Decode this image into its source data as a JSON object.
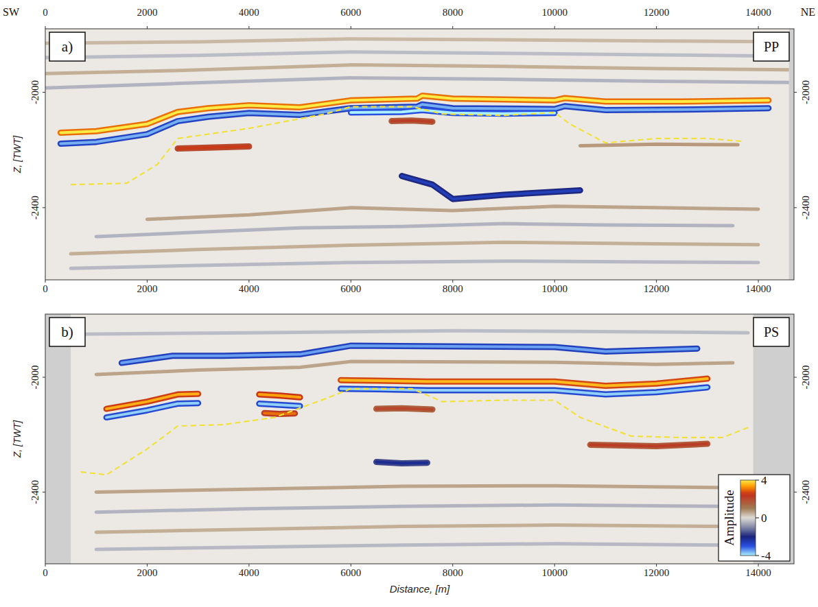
{
  "chart_data": [
    {
      "type": "seismic_section",
      "title": "a)",
      "subtitle": "PP",
      "annotations": [
        "SW",
        "NE"
      ],
      "ylabel": "Z, [TWT]",
      "xlim": [
        0,
        14700
      ],
      "ylim": [
        -2650,
        -1780
      ],
      "xticks": [
        0,
        2000,
        4000,
        6000,
        8000,
        10000,
        12000,
        14000
      ],
      "x2ticks": [
        0,
        2000,
        4000,
        6000,
        8000,
        10000,
        12000,
        14000
      ],
      "yticks": [
        -2400,
        -2000
      ],
      "y2lim": [
        -2650,
        -1780
      ],
      "y2ticks": [
        -2400,
        -2000
      ],
      "coverage": [
        0,
        14600
      ],
      "horizon": {
        "color": "#f0e23a",
        "line_style": "dashed",
        "x": [
          500,
          1600,
          2200,
          2600,
          4000,
          5500,
          6000,
          7200,
          7800,
          9000,
          10000,
          10300,
          11000,
          12000,
          13000,
          13700
        ],
        "z": [
          -2320,
          -2315,
          -2250,
          -2160,
          -2125,
          -2075,
          -2050,
          -2050,
          -2075,
          -2080,
          -2070,
          -2110,
          -2175,
          -2160,
          -2160,
          -2170
        ]
      },
      "reflectors": [
        {
          "amplitude": 0.8,
          "x": [
            0,
            3000,
            6000,
            9000,
            12000,
            14600
          ],
          "z": [
            -1830,
            -1825,
            -1815,
            -1818,
            -1822,
            -1825
          ]
        },
        {
          "amplitude": -0.8,
          "x": [
            0,
            3000,
            6000,
            9000,
            12000,
            14600
          ],
          "z": [
            -1880,
            -1872,
            -1860,
            -1865,
            -1870,
            -1875
          ]
        },
        {
          "amplitude": 1.0,
          "x": [
            0,
            2500,
            6000,
            9000,
            12000,
            14600
          ],
          "z": [
            -1935,
            -1925,
            -1905,
            -1910,
            -1918,
            -1922
          ]
        },
        {
          "amplitude": -1.0,
          "x": [
            0,
            2500,
            6000,
            9000,
            12000,
            14600
          ],
          "z": [
            -1985,
            -1970,
            -1950,
            -1955,
            -1962,
            -1966
          ]
        },
        {
          "amplitude": 4,
          "x": [
            300,
            1000,
            2000,
            2600,
            3200,
            4000,
            5000,
            6000,
            7300,
            7400,
            8000,
            10000,
            10200,
            11000,
            12500,
            14200
          ],
          "z": [
            -2140,
            -2135,
            -2110,
            -2068,
            -2055,
            -2045,
            -2052,
            -2028,
            -2022,
            -2012,
            -2022,
            -2028,
            -2020,
            -2032,
            -2032,
            -2028
          ]
        },
        {
          "amplitude": -3.6,
          "x": [
            300,
            1000,
            2000,
            2600,
            3200,
            4000,
            5000,
            6000,
            7300,
            7400,
            8000,
            10000,
            10200,
            11000,
            12500,
            14200
          ],
          "z": [
            -2178,
            -2172,
            -2145,
            -2100,
            -2085,
            -2072,
            -2078,
            -2055,
            -2050,
            -2042,
            -2055,
            -2058,
            -2048,
            -2062,
            -2060,
            -2055
          ]
        },
        {
          "amplitude": -4,
          "x": [
            6000,
            7000,
            7400,
            8000,
            9000,
            10000
          ],
          "z": [
            -2070,
            -2068,
            -2062,
            -2072,
            -2074,
            -2072
          ]
        },
        {
          "amplitude": 2.6,
          "x": [
            2600,
            3200,
            4000
          ],
          "z": [
            -2195,
            -2192,
            -2188
          ]
        },
        {
          "amplitude": 2.2,
          "x": [
            6800,
            7200,
            7600
          ],
          "z": [
            -2100,
            -2098,
            -2102
          ]
        },
        {
          "amplitude": 1.5,
          "x": [
            10500,
            12000,
            13600
          ],
          "z": [
            -2185,
            -2180,
            -2182
          ]
        },
        {
          "amplitude": -2.6,
          "x": [
            7000,
            7600,
            8000,
            9000,
            10500
          ],
          "z": [
            -2290,
            -2320,
            -2370,
            -2355,
            -2340
          ]
        },
        {
          "amplitude": 1.2,
          "x": [
            2000,
            4000,
            6000,
            8000,
            10000,
            12000,
            14000
          ],
          "z": [
            -2440,
            -2425,
            -2400,
            -2410,
            -2395,
            -2400,
            -2405
          ]
        },
        {
          "amplitude": -1.0,
          "x": [
            1000,
            3000,
            5000,
            7000,
            9000,
            11000,
            13500
          ],
          "z": [
            -2500,
            -2485,
            -2470,
            -2465,
            -2455,
            -2460,
            -2462
          ]
        },
        {
          "amplitude": 1.0,
          "x": [
            500,
            3000,
            6000,
            9000,
            12000,
            14000
          ],
          "z": [
            -2560,
            -2545,
            -2530,
            -2520,
            -2525,
            -2528
          ]
        },
        {
          "amplitude": -0.9,
          "x": [
            500,
            3000,
            6000,
            9000,
            12000,
            14000
          ],
          "z": [
            -2610,
            -2600,
            -2590,
            -2585,
            -2588,
            -2590
          ]
        }
      ]
    },
    {
      "type": "seismic_section",
      "title": "b)",
      "subtitle": "PS",
      "xlabel": "Distance, [m]",
      "ylabel": "Z, [TWT]",
      "xlim": [
        0,
        14700
      ],
      "ylim": [
        -2650,
        -1780
      ],
      "xticks": [
        0,
        2000,
        4000,
        6000,
        8000,
        10000,
        12000,
        14000
      ],
      "yticks": [
        -2400,
        -2000
      ],
      "y2lim": [
        -2650,
        -1780
      ],
      "y2ticks": [
        -2400,
        -2000
      ],
      "coverage": [
        500,
        13900
      ],
      "colorbar": {
        "label": "Amplitude",
        "range": [
          -4,
          4
        ],
        "ticks": [
          -4,
          0,
          4
        ]
      },
      "horizon": {
        "color": "#f0e23a",
        "line_style": "dashed",
        "x": [
          700,
          1200,
          2000,
          2600,
          3500,
          4500,
          5500,
          6000,
          7200,
          7800,
          9000,
          10000,
          10500,
          11500,
          12500,
          13300,
          13800
        ],
        "z": [
          -2330,
          -2340,
          -2250,
          -2170,
          -2165,
          -2140,
          -2075,
          -2040,
          -2040,
          -2085,
          -2080,
          -2080,
          -2140,
          -2205,
          -2210,
          -2210,
          -2175
        ]
      },
      "reflectors": [
        {
          "amplitude": -0.8,
          "x": [
            600,
            4000,
            8000,
            12000,
            13800
          ],
          "z": [
            -1850,
            -1845,
            -1838,
            -1842,
            -1845
          ]
        },
        {
          "amplitude": -3.5,
          "x": [
            1500,
            2500,
            3500,
            5000,
            6000,
            10000,
            11000,
            12800
          ],
          "z": [
            -1950,
            -1925,
            -1925,
            -1920,
            -1890,
            -1895,
            -1910,
            -1900
          ]
        },
        {
          "amplitude": 1.2,
          "x": [
            1000,
            3000,
            5000,
            6000,
            10000,
            12000,
            13500
          ],
          "z": [
            -1990,
            -1975,
            -1965,
            -1945,
            -1948,
            -1955,
            -1950
          ]
        },
        {
          "amplitude": 3.5,
          "x": [
            1200,
            2000,
            2600,
            3000
          ],
          "z": [
            -2110,
            -2085,
            -2060,
            -2058
          ]
        },
        {
          "amplitude": -3.8,
          "x": [
            1200,
            2000,
            2600,
            3000
          ],
          "z": [
            -2140,
            -2115,
            -2092,
            -2090
          ]
        },
        {
          "amplitude": 3.4,
          "x": [
            4200,
            4600,
            5000
          ],
          "z": [
            -2060,
            -2064,
            -2070
          ]
        },
        {
          "amplitude": -3.8,
          "x": [
            4200,
            4600,
            5000
          ],
          "z": [
            -2092,
            -2096,
            -2100
          ]
        },
        {
          "amplitude": 3.0,
          "x": [
            4300,
            4600,
            4900
          ],
          "z": [
            -2125,
            -2128,
            -2126
          ]
        },
        {
          "amplitude": 3.6,
          "x": [
            5800,
            6500,
            7500,
            8500,
            10000,
            11000,
            12000,
            13000
          ],
          "z": [
            -2010,
            -2012,
            -2015,
            -2015,
            -2015,
            -2030,
            -2022,
            -2005
          ]
        },
        {
          "amplitude": -3.8,
          "x": [
            5800,
            6500,
            7500,
            8500,
            10000,
            11000,
            12000,
            13000
          ],
          "z": [
            -2040,
            -2042,
            -2045,
            -2045,
            -2045,
            -2060,
            -2052,
            -2035
          ]
        },
        {
          "amplitude": 2.0,
          "x": [
            6500,
            7000,
            7600
          ],
          "z": [
            -2110,
            -2108,
            -2112
          ]
        },
        {
          "amplitude": 2.2,
          "x": [
            10700,
            12000,
            13000
          ],
          "z": [
            -2235,
            -2240,
            -2232
          ]
        },
        {
          "amplitude": -2.2,
          "x": [
            6500,
            7000,
            7500
          ],
          "z": [
            -2295,
            -2300,
            -2298
          ]
        },
        {
          "amplitude": 1.2,
          "x": [
            1000,
            4000,
            7000,
            10000,
            13500
          ],
          "z": [
            -2400,
            -2390,
            -2380,
            -2378,
            -2385
          ]
        },
        {
          "amplitude": -1.0,
          "x": [
            1000,
            4000,
            7000,
            10000,
            13500
          ],
          "z": [
            -2470,
            -2458,
            -2450,
            -2445,
            -2450
          ]
        },
        {
          "amplitude": 1.0,
          "x": [
            1000,
            4000,
            7000,
            10000,
            13500
          ],
          "z": [
            -2540,
            -2530,
            -2520,
            -2515,
            -2520
          ]
        },
        {
          "amplitude": -0.9,
          "x": [
            1000,
            4000,
            7000,
            10000,
            13500
          ],
          "z": [
            -2600,
            -2592,
            -2585,
            -2580,
            -2585
          ]
        }
      ]
    }
  ]
}
